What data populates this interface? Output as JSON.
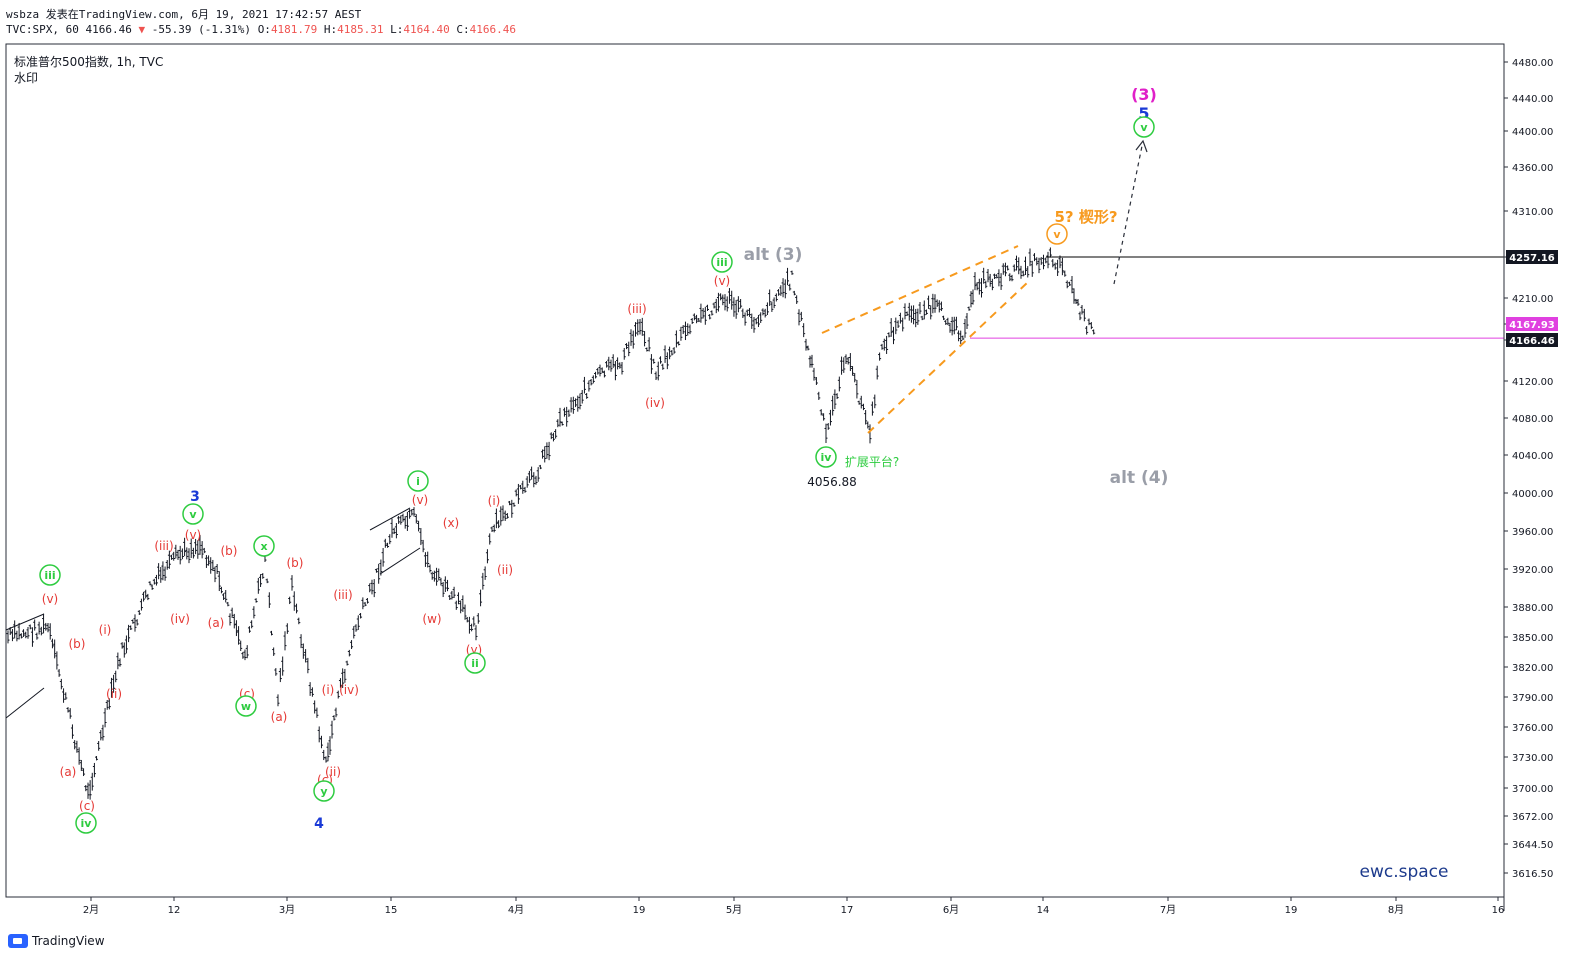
{
  "header": {
    "line1": "wsbza 发表在TradingView.com, 6月 19, 2021 17:42:57 AEST",
    "symbol": "TVC:SPX, 60",
    "last": "4166.46",
    "change_arrow": "▼",
    "change": "-55.39 (-1.31%)",
    "o_label": "O:",
    "o": "4181.79",
    "h_label": "H:",
    "h": "4185.31",
    "l_label": "L:",
    "l": "4164.40",
    "c_label": "C:",
    "c": "4166.46"
  },
  "legend": {
    "title": "标准普尔500指数, 1h, TVC",
    "watermark_label": "水印"
  },
  "watermark": "ewc.space",
  "footer": {
    "brand": "TradingView"
  },
  "colors": {
    "candle": "#131722",
    "red_label": "#e53935",
    "green_label": "#2ecc40",
    "blue_label": "#1a3ad6",
    "magenta": "#e020c8",
    "orange": "#f79a1e",
    "gray_label": "#9a9ea8",
    "resistance": "#000000",
    "support": "#e040e0",
    "price_tag_bg": "#e040e0",
    "last_tag_bg": "#131722"
  },
  "chart_data": {
    "type": "line",
    "title": "标准普尔500指数, 1h, TVC",
    "y_axis": {
      "ticks": [
        "4480.00",
        "4440.00",
        "4400.00",
        "4360.00",
        "4310.00",
        "4257.16",
        "4210.00",
        "4167.93",
        "4166.46",
        "4120.00",
        "4080.00",
        "4040.00",
        "4000.00",
        "3960.00",
        "3920.00",
        "3880.00",
        "3850.00",
        "3820.00",
        "3790.00",
        "3760.00",
        "3730.00",
        "3700.00",
        "3672.00",
        "3644.50",
        "3616.50"
      ]
    },
    "x_axis": {
      "ticks": [
        "2月",
        "12",
        "3月",
        "15",
        "4月",
        "19",
        "5月",
        "17",
        "6月",
        "14",
        "7月",
        "19",
        "8月",
        "16"
      ]
    },
    "price_series": {
      "x": [
        "1月21",
        "1月25",
        "1月29",
        "2月3",
        "2月8",
        "2月12",
        "2月16",
        "2月18",
        "2月22",
        "2月25",
        "2月26",
        "3月1",
        "3月4",
        "3月5",
        "3月8",
        "3月10",
        "3月15",
        "3月18",
        "3月22",
        "3月25",
        "3月29",
        "4月1",
        "4月5",
        "4月9",
        "4月13",
        "4月16",
        "4月20",
        "4月23",
        "4月29",
        "5月3",
        "5月7",
        "5月10",
        "5月12",
        "5月14",
        "5月18",
        "5月19",
        "5月21",
        "5月25",
        "5月28",
        "6月3",
        "6月4",
        "6月7",
        "6月10",
        "6月14",
        "6月15",
        "6月16",
        "6月17",
        "6月18"
      ],
      "y": [
        3850,
        3860,
        3694,
        3830,
        3900,
        3934,
        3946,
        3920,
        3830,
        3930,
        3790,
        3900,
        3722,
        3780,
        3860,
        3900,
        3960,
        3975,
        3920,
        3860,
        3960,
        4020,
        4078,
        4128,
        4140,
        4185,
        4130,
        4180,
        4210,
        4185,
        4233,
        4160,
        4130,
        4060,
        4150,
        4065,
        4160,
        4190,
        4200,
        4170,
        4227,
        4230,
        4240,
        4258,
        4250,
        4220,
        4190,
        4166.46
      ]
    },
    "key_levels": {
      "resistance": 4257.16,
      "support": 4166.46,
      "prev_close_tag": 4167.93,
      "low_marker": 4056.88
    },
    "annotations": [
      {
        "text": "(3)",
        "color": "magenta"
      },
      {
        "text": "5",
        "color": "blue"
      },
      {
        "text": "v",
        "color": "green",
        "circled": true
      },
      {
        "text": "5? 楔形?",
        "color": "orange"
      },
      {
        "text": "v",
        "color": "orange",
        "circled": true
      },
      {
        "text": "alt (3)",
        "color": "gray"
      },
      {
        "text": "alt (4)",
        "color": "gray"
      },
      {
        "text": "iii",
        "color": "green",
        "circled": true
      },
      {
        "text": "(v)",
        "color": "red"
      },
      {
        "text": "(iii)",
        "color": "red"
      },
      {
        "text": "(iv)",
        "color": "red"
      },
      {
        "text": "iv",
        "color": "green",
        "circled": true
      },
      {
        "text": "扩展平台?",
        "color": "green"
      },
      {
        "text": "4056.88",
        "color": "dark"
      },
      {
        "text": "i",
        "color": "green",
        "circled": true
      },
      {
        "text": "(v)",
        "color": "red"
      },
      {
        "text": "(x)",
        "color": "red"
      },
      {
        "text": "(i)",
        "color": "red"
      },
      {
        "text": "(ii)",
        "color": "red"
      },
      {
        "text": "(w)",
        "color": "red"
      },
      {
        "text": "(y)",
        "color": "red"
      },
      {
        "text": "ii",
        "color": "green",
        "circled": true
      },
      {
        "text": "3",
        "color": "blue"
      },
      {
        "text": "v",
        "color": "green",
        "circled": true
      },
      {
        "text": "(v)",
        "color": "red"
      },
      {
        "text": "(iii)",
        "color": "red"
      },
      {
        "text": "(b)",
        "color": "red"
      },
      {
        "text": "(iv)",
        "color": "red"
      },
      {
        "text": "(a)",
        "color": "red"
      },
      {
        "text": "x",
        "color": "green",
        "circled": true
      },
      {
        "text": "(b)",
        "color": "red"
      },
      {
        "text": "(c)",
        "color": "red"
      },
      {
        "text": "w",
        "color": "green",
        "circled": true
      },
      {
        "text": "(a)",
        "color": "red"
      },
      {
        "text": "(iii)",
        "color": "red"
      },
      {
        "text": "(i)",
        "color": "red"
      },
      {
        "text": "(iv)",
        "color": "red"
      },
      {
        "text": "(c)",
        "color": "red"
      },
      {
        "text": "(ii)",
        "color": "red"
      },
      {
        "text": "y",
        "color": "green",
        "circled": true
      },
      {
        "text": "4",
        "color": "blue"
      },
      {
        "text": "iii",
        "color": "green",
        "circled": true
      },
      {
        "text": "(v)",
        "color": "red"
      },
      {
        "text": "(b)",
        "color": "red"
      },
      {
        "text": "(i)",
        "color": "red"
      },
      {
        "text": "(ii)",
        "color": "red"
      },
      {
        "text": "(a)",
        "color": "red"
      },
      {
        "text": "(c)",
        "color": "red"
      },
      {
        "text": "iv",
        "color": "green",
        "circled": true
      }
    ]
  }
}
